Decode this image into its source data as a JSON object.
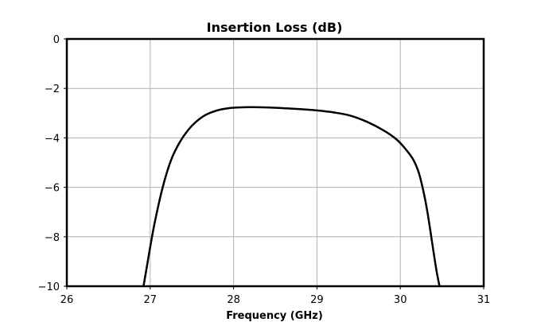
{
  "chart_data": {
    "type": "line",
    "title": "Insertion Loss (dB)",
    "xlabel": "Frequency (GHz)",
    "ylabel": "",
    "xlim": [
      26,
      31
    ],
    "ylim": [
      -10,
      0
    ],
    "xticks": [
      26,
      27,
      28,
      29,
      30,
      31
    ],
    "yticks": [
      0,
      -2,
      -4,
      -6,
      -8,
      -10
    ],
    "xtick_labels": [
      "26",
      "27",
      "28",
      "29",
      "30",
      "31"
    ],
    "ytick_labels": [
      "0",
      "−2",
      "−4",
      "−6",
      "−8",
      "−10"
    ],
    "grid": true,
    "series": [
      {
        "color": "#000000",
        "x": [
          26.92,
          26.97,
          27.05,
          27.15,
          27.25,
          27.35,
          27.45,
          27.55,
          27.65,
          27.75,
          27.85,
          28.0,
          28.2,
          28.4,
          28.6,
          28.8,
          29.0,
          29.2,
          29.4,
          29.6,
          29.8,
          29.95,
          30.05,
          30.15,
          30.22,
          30.28,
          30.33,
          30.38,
          30.43,
          30.47
        ],
        "y": [
          -10.0,
          -9.0,
          -7.5,
          -6.0,
          -4.9,
          -4.2,
          -3.7,
          -3.35,
          -3.1,
          -2.95,
          -2.85,
          -2.78,
          -2.76,
          -2.77,
          -2.8,
          -2.84,
          -2.89,
          -2.97,
          -3.1,
          -3.35,
          -3.7,
          -4.05,
          -4.4,
          -4.85,
          -5.4,
          -6.2,
          -7.1,
          -8.2,
          -9.3,
          -10.0
        ]
      }
    ]
  }
}
